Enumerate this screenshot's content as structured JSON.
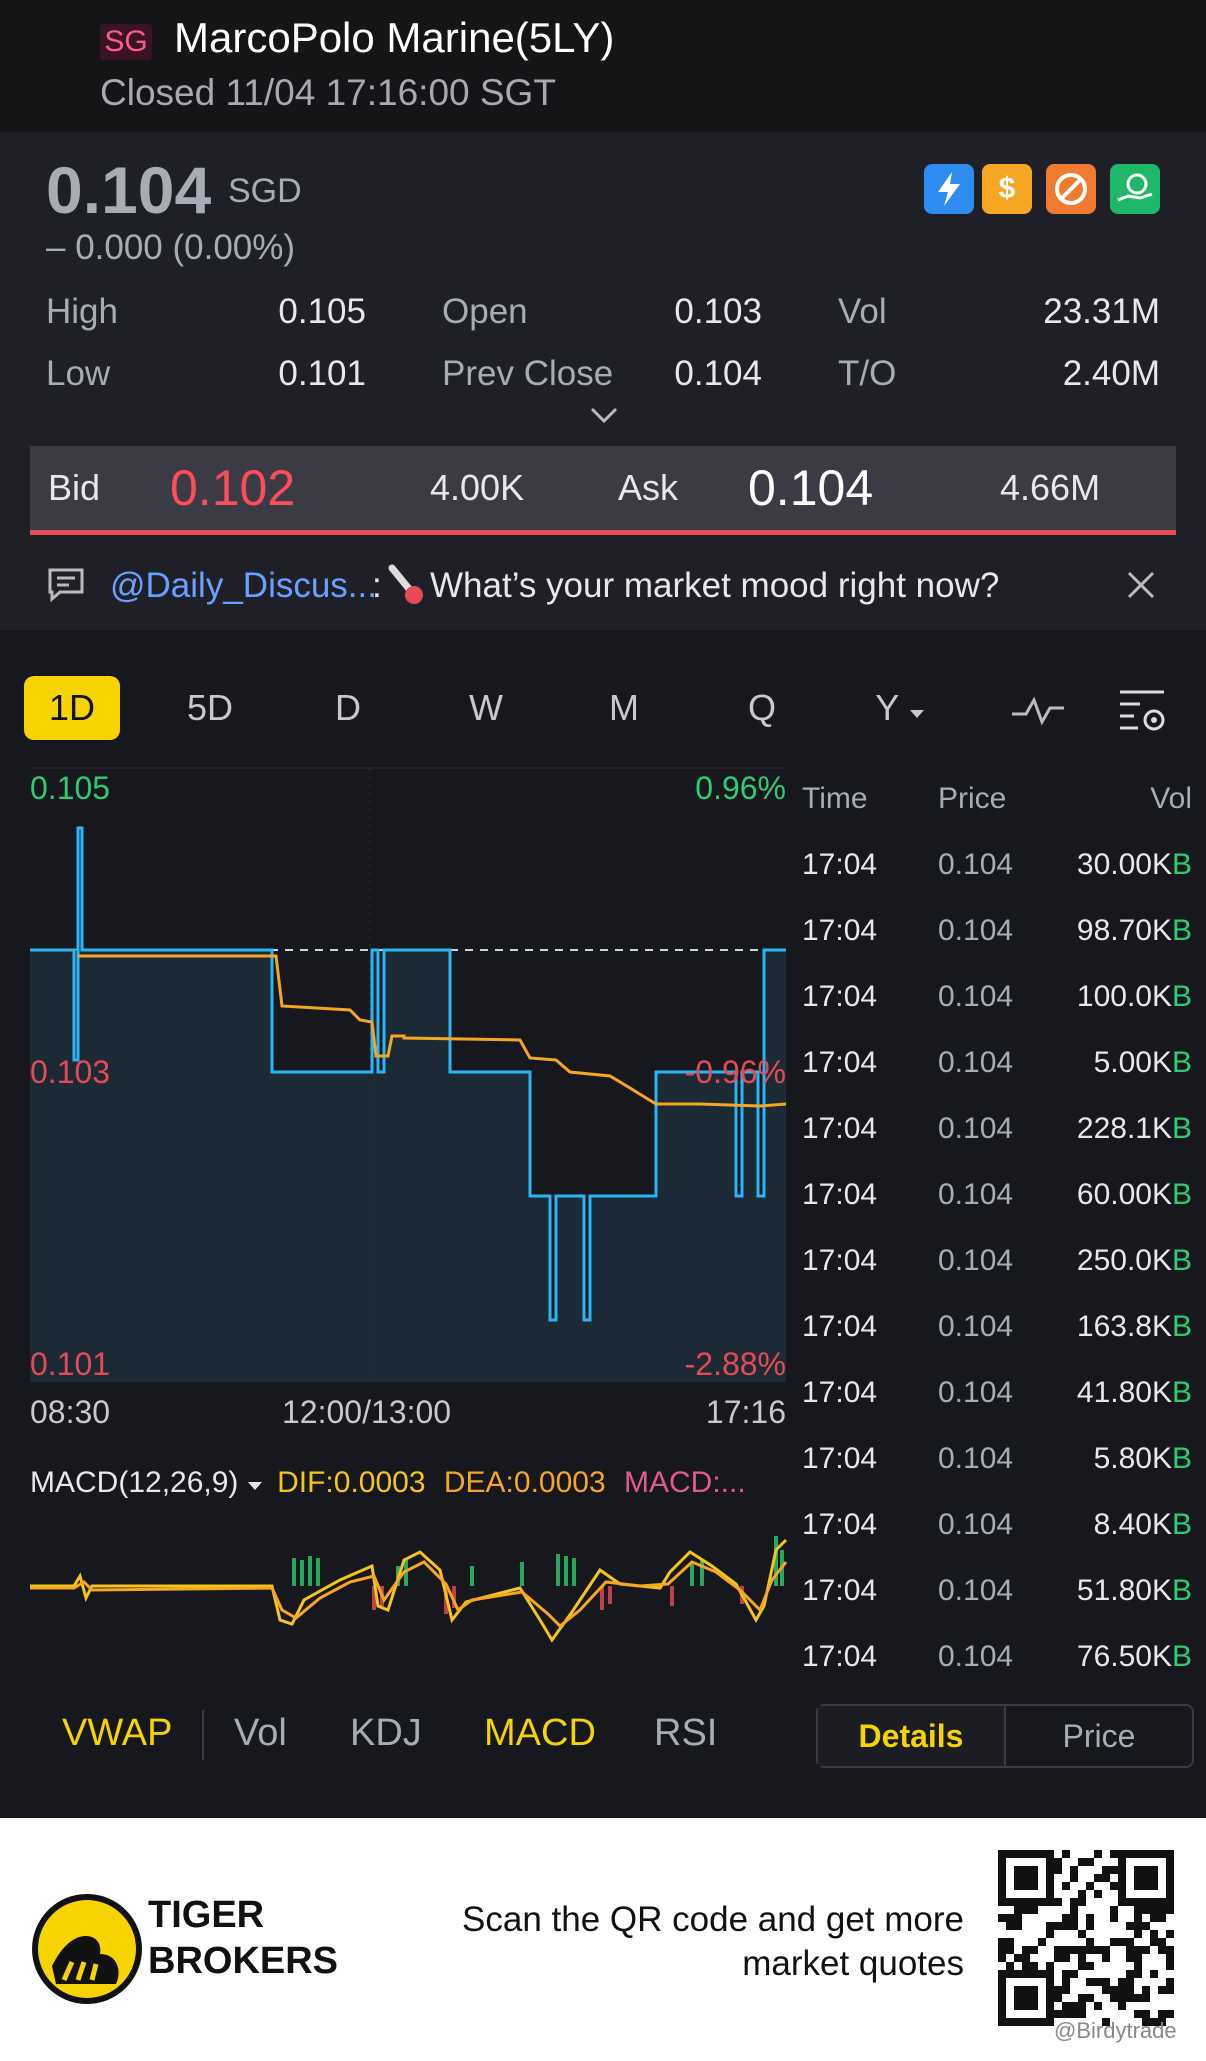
{
  "header": {
    "market_tag": "SG",
    "title": "MarcoPolo Marine(5LY)",
    "status": "Closed 11/04 17:16:00 SGT"
  },
  "quote": {
    "price": "0.104",
    "currency": "SGD",
    "change": "–  0.000 (0.00%)",
    "stats": {
      "high_label": "High",
      "high": "0.105",
      "open_label": "Open",
      "open": "0.103",
      "vol_label": "Vol",
      "vol": "23.31M",
      "low_label": "Low",
      "low": "0.101",
      "prev_close_label": "Prev Close",
      "prev_close": "0.104",
      "to_label": "T/O",
      "to": "2.40M"
    },
    "badges": [
      {
        "icon": "lightning-icon",
        "color": "#2f8cf0"
      },
      {
        "icon": "dollar-icon",
        "color": "#f5a623"
      },
      {
        "icon": "no-short-icon",
        "color": "#f07b30"
      },
      {
        "icon": "money-hand-icon",
        "color": "#1fb86a"
      }
    ]
  },
  "bidask": {
    "bid_label": "Bid",
    "bid": "0.102",
    "bid_size": "4.00K",
    "ask_label": "Ask",
    "ask": "0.104",
    "ask_size": "4.66M"
  },
  "discussion": {
    "handle": "@Daily_Discus...",
    "colon": ":",
    "text": "What’s your market mood right now?"
  },
  "timeframes": {
    "d1": "1D",
    "d5": "5D",
    "d": "D",
    "w": "W",
    "m": "M",
    "q": "Q",
    "y": "Y"
  },
  "chart": {
    "ymax": "0.105",
    "ymid": "0.103",
    "ymin": "0.101",
    "pct_top": "0.96%",
    "pct_mid": "-0.96%",
    "pct_bot": "-2.88%",
    "x_start": "08:30",
    "x_mid": "12:00/13:00",
    "x_end": "17:16",
    "colors": {
      "price": "#29b6f6",
      "vwap": "#f5a623",
      "up": "#2ecc71",
      "down": "#e84a55"
    }
  },
  "macd": {
    "label": "MACD(12,26,9)",
    "dif": "DIF:0.0003",
    "dea": "DEA:0.0003",
    "macd": "MACD:..."
  },
  "ticks": {
    "headers": {
      "time": "Time",
      "price": "Price",
      "vol": "Vol"
    },
    "rows": [
      {
        "time": "17:04",
        "price": "0.104",
        "vol": "30.00K",
        "side": "B"
      },
      {
        "time": "17:04",
        "price": "0.104",
        "vol": "98.70K",
        "side": "B"
      },
      {
        "time": "17:04",
        "price": "0.104",
        "vol": "100.0K",
        "side": "B"
      },
      {
        "time": "17:04",
        "price": "0.104",
        "vol": "5.00K",
        "side": "B"
      },
      {
        "time": "17:04",
        "price": "0.104",
        "vol": "228.1K",
        "side": "B"
      },
      {
        "time": "17:04",
        "price": "0.104",
        "vol": "60.00K",
        "side": "B"
      },
      {
        "time": "17:04",
        "price": "0.104",
        "vol": "250.0K",
        "side": "B"
      },
      {
        "time": "17:04",
        "price": "0.104",
        "vol": "163.8K",
        "side": "B"
      },
      {
        "time": "17:04",
        "price": "0.104",
        "vol": "41.80K",
        "side": "B"
      },
      {
        "time": "17:04",
        "price": "0.104",
        "vol": "5.80K",
        "side": "B"
      },
      {
        "time": "17:04",
        "price": "0.104",
        "vol": "8.40K",
        "side": "B"
      },
      {
        "time": "17:04",
        "price": "0.104",
        "vol": "51.80K",
        "side": "B"
      },
      {
        "time": "17:04",
        "price": "0.104",
        "vol": "76.50K",
        "side": "B"
      }
    ]
  },
  "indicators": {
    "vwap": "VWAP",
    "vol": "Vol",
    "kdj": "KDJ",
    "macd": "MACD",
    "rsi": "RSI"
  },
  "toggle": {
    "details": "Details",
    "price": "Price"
  },
  "footer": {
    "brand_line1": "TIGER",
    "brand_line2": "BROKERS",
    "cta_line1": "Scan the QR code and get more",
    "cta_line2": "market quotes",
    "watermark": "@Birdytrade"
  }
}
